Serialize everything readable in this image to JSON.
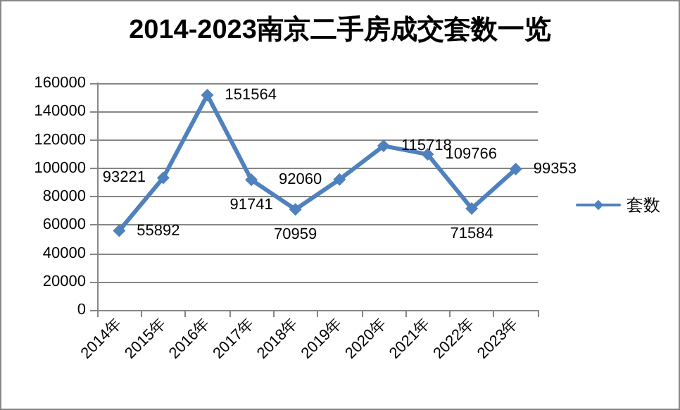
{
  "chart_data": {
    "type": "line",
    "title": "2014-2023南京二手房成交套数一览",
    "categories": [
      "2014年",
      "2015年",
      "2016年",
      "2017年",
      "2018年",
      "2019年",
      "2020年",
      "2021年",
      "2022年",
      "2023年"
    ],
    "series": [
      {
        "name": "套数",
        "color": "#4f81bd",
        "values": [
          55892,
          93221,
          151564,
          91741,
          70959,
          92060,
          115718,
          109766,
          71584,
          99353
        ]
      }
    ],
    "ylim": [
      0,
      160000
    ],
    "yticks": [
      0,
      20000,
      40000,
      60000,
      80000,
      100000,
      120000,
      140000,
      160000
    ],
    "grid": "y",
    "legend": "right",
    "marker": "diamond",
    "line_style": "solid",
    "data_labels": true
  }
}
